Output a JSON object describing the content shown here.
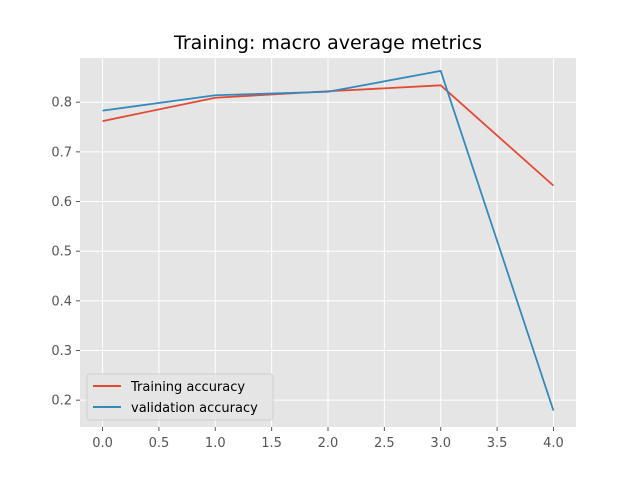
{
  "chart_data": {
    "type": "line",
    "title": "Training: macro average metrics",
    "xlabel": "",
    "ylabel": "",
    "x": [
      0,
      1,
      2,
      3,
      4
    ],
    "xlim": [
      -0.2,
      4.2
    ],
    "ylim": [
      0.146,
      0.889
    ],
    "xticks": [
      0.0,
      0.5,
      1.0,
      1.5,
      2.0,
      2.5,
      3.0,
      3.5,
      4.0
    ],
    "xtick_labels": [
      "0.0",
      "0.5",
      "1.0",
      "1.5",
      "2.0",
      "2.5",
      "3.0",
      "3.5",
      "4.0"
    ],
    "yticks": [
      0.2,
      0.3,
      0.4,
      0.5,
      0.6,
      0.7,
      0.8
    ],
    "ytick_labels": [
      "0.2",
      "0.3",
      "0.4",
      "0.5",
      "0.6",
      "0.7",
      "0.8"
    ],
    "grid": true,
    "legend_position": "lower-left",
    "background_color": "#e5e5e5",
    "grid_color": "#ffffff",
    "series": [
      {
        "name": "Training accuracy",
        "color": "#e24a33",
        "values": [
          0.762,
          0.809,
          0.822,
          0.834,
          0.632
        ]
      },
      {
        "name": "validation accuracy",
        "color": "#348abd",
        "values": [
          0.783,
          0.814,
          0.821,
          0.863,
          0.179
        ]
      }
    ]
  }
}
